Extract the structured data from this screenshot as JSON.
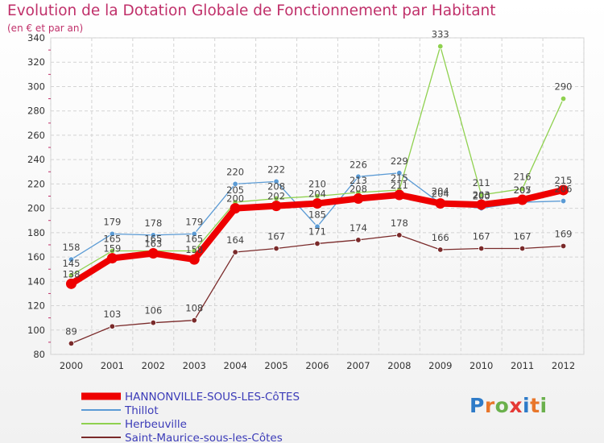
{
  "header": {
    "title": "Evolution de la Dotation Globale de Fonctionnement par Habitant",
    "subtitle": "(en € et par an)"
  },
  "brand": {
    "text": "Proxiti"
  },
  "chart_data": {
    "type": "line",
    "title": "Evolution de la Dotation Globale de Fonctionnement par Habitant",
    "subtitle": "(en € et par an)",
    "xlabel": "",
    "ylabel": "",
    "ylim": [
      80,
      340
    ],
    "yticks": [
      80,
      100,
      120,
      140,
      160,
      180,
      200,
      220,
      240,
      260,
      280,
      300,
      320,
      340
    ],
    "x": [
      "2000",
      "2001",
      "2002",
      "2003",
      "2004",
      "2005",
      "2006",
      "2007",
      "2008",
      "2009",
      "2010",
      "2011",
      "2012"
    ],
    "grid": true,
    "legend_position": "bottom-left",
    "series": [
      {
        "name": "HANNONVILLE-SOUS-LES-CôTES",
        "color": "#ee0000",
        "values": [
          138,
          159,
          163,
          158,
          200,
          202,
          204,
          208,
          211,
          204,
          203,
          207,
          215
        ]
      },
      {
        "name": "Thillot",
        "color": "#5b9bd5",
        "values": [
          158,
          179,
          178,
          179,
          220,
          222,
          185,
          226,
          229,
          204,
          200,
          205,
          206
        ]
      },
      {
        "name": "Herbeuville",
        "color": "#8fd14f",
        "values": [
          145,
          165,
          165,
          165,
          205,
          208,
          210,
          213,
          215,
          333,
          211,
          216,
          290
        ]
      },
      {
        "name": "Saint-Maurice-sous-les-Côtes",
        "color": "#7a2a2a",
        "values": [
          89,
          103,
          106,
          108,
          164,
          167,
          171,
          174,
          178,
          166,
          167,
          167,
          169
        ]
      }
    ]
  }
}
